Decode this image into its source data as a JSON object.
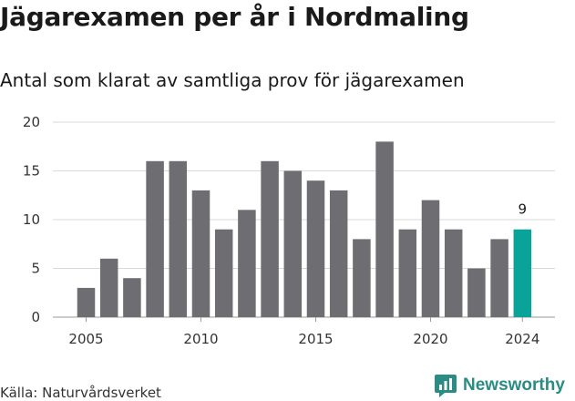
{
  "title": "Jägarexamen per år i Nordmaling",
  "subtitle": "Antal som klarat av samtliga prov för jägarexamen",
  "source": "Källa: Naturvårdsverket",
  "brand": "Newsworthy",
  "colors": {
    "bar": "#6e6d72",
    "highlight": "#0aa39a",
    "grid": "#d9d9d9",
    "brand": "#2a8c85"
  },
  "chart_data": {
    "type": "bar",
    "title": "Jägarexamen per år i Nordmaling",
    "subtitle": "Antal som klarat av samtliga prov för jägarexamen",
    "x": [
      2005,
      2006,
      2007,
      2008,
      2009,
      2010,
      2011,
      2012,
      2013,
      2014,
      2015,
      2016,
      2017,
      2018,
      2019,
      2020,
      2021,
      2022,
      2023,
      2024
    ],
    "values": [
      3,
      6,
      4,
      16,
      16,
      13,
      9,
      11,
      16,
      15,
      14,
      13,
      8,
      18,
      9,
      12,
      9,
      5,
      8,
      9
    ],
    "ylim": [
      0,
      20
    ],
    "yticks": [
      0,
      5,
      10,
      15,
      20
    ],
    "xticks": [
      2005,
      2010,
      2015,
      2020,
      2024
    ],
    "highlight": {
      "x": 2024,
      "label": "9"
    },
    "grid": true,
    "legend": "none"
  }
}
